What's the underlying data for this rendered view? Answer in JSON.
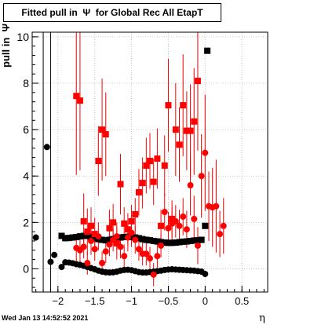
{
  "title": "Fitted pull in  Ψ  for Global Rec All EtapT",
  "ylabel": "pull in  Ψ",
  "xlabel": "η",
  "date_label": "Wed Jan 13 14:52:52 2021",
  "colors": {
    "black": "#000000",
    "red": "#ff0000",
    "frame": "#000000",
    "grid": "#bbbbbb"
  },
  "chart_data": {
    "type": "scatter",
    "xlim": [
      -2.35,
      0.85
    ],
    "ylim": [
      -1.0,
      10.2
    ],
    "grid": true,
    "xticks": [
      -2,
      -1.5,
      -1,
      -0.5,
      0,
      0.5
    ],
    "xtick_labels": [
      "−2",
      "−1.5",
      "−1",
      "−0.5",
      "0",
      "0.5"
    ],
    "yticks": [
      0,
      2,
      4,
      6,
      8,
      10
    ],
    "ytick_labels": [
      "0",
      "2",
      "4",
      "6",
      "8",
      "10"
    ],
    "series": [
      {
        "marker": "square",
        "color": "#000000",
        "points": [
          [
            -1.95,
            1.42
          ],
          [
            -1.9,
            1.32
          ],
          [
            -1.85,
            1.33
          ],
          [
            -1.8,
            1.35
          ],
          [
            -1.75,
            1.37
          ],
          [
            -1.7,
            1.4
          ],
          [
            -1.65,
            1.42
          ],
          [
            -1.6,
            1.42
          ],
          [
            -1.55,
            1.38
          ],
          [
            -1.5,
            1.33
          ],
          [
            -1.45,
            1.28
          ],
          [
            -1.4,
            1.25
          ],
          [
            -1.35,
            1.23
          ],
          [
            -1.3,
            1.25
          ],
          [
            -1.25,
            1.28
          ],
          [
            -1.2,
            1.32
          ],
          [
            -1.15,
            1.35
          ],
          [
            -1.1,
            1.37
          ],
          [
            -1.05,
            1.38
          ],
          [
            -1.0,
            1.37
          ],
          [
            -0.95,
            1.35
          ],
          [
            -0.9,
            1.32
          ],
          [
            -0.85,
            1.28
          ],
          [
            -0.8,
            1.25
          ],
          [
            -0.75,
            1.23
          ],
          [
            -0.7,
            1.2
          ],
          [
            -0.65,
            1.18
          ],
          [
            -0.6,
            1.15
          ],
          [
            -0.55,
            1.13
          ],
          [
            -0.5,
            1.12
          ],
          [
            -0.45,
            1.12
          ],
          [
            -0.4,
            1.13
          ],
          [
            -0.35,
            1.15
          ],
          [
            -0.3,
            1.17
          ],
          [
            -0.25,
            1.18
          ],
          [
            -0.2,
            1.2
          ],
          [
            -0.15,
            1.22
          ],
          [
            -0.1,
            1.23
          ],
          [
            -0.05,
            1.25
          ],
          [
            0.0,
            1.85
          ],
          [
            0.03,
            9.4
          ]
        ]
      },
      {
        "marker": "circle",
        "color": "#000000",
        "points": [
          [
            -2.3,
            1.35
          ],
          [
            -2.15,
            5.25
          ],
          [
            -2.1,
            0.3
          ],
          [
            -2.05,
            0.6
          ],
          [
            -1.95,
            0.08
          ],
          [
            -1.9,
            0.28
          ],
          [
            -1.85,
            0.27
          ],
          [
            -1.8,
            0.24
          ],
          [
            -1.75,
            0.2
          ],
          [
            -1.7,
            0.17
          ],
          [
            -1.65,
            0.13
          ],
          [
            -1.6,
            0.08
          ],
          [
            -1.55,
            0.03
          ],
          [
            -1.5,
            -0.02
          ],
          [
            -1.45,
            -0.08
          ],
          [
            -1.4,
            -0.12
          ],
          [
            -1.35,
            -0.15
          ],
          [
            -1.3,
            -0.16
          ],
          [
            -1.25,
            -0.15
          ],
          [
            -1.2,
            -0.12
          ],
          [
            -1.15,
            -0.08
          ],
          [
            -1.1,
            -0.05
          ],
          [
            -1.05,
            -0.04
          ],
          [
            -1.0,
            -0.06
          ],
          [
            -0.95,
            -0.1
          ],
          [
            -0.9,
            -0.14
          ],
          [
            -0.85,
            -0.16
          ],
          [
            -0.8,
            -0.16
          ],
          [
            -0.75,
            -0.14
          ],
          [
            -0.7,
            -0.12
          ],
          [
            -0.65,
            -0.1
          ],
          [
            -0.6,
            -0.08
          ],
          [
            -0.55,
            -0.05
          ],
          [
            -0.5,
            -0.03
          ],
          [
            -0.45,
            -0.02
          ],
          [
            -0.4,
            -0.03
          ],
          [
            -0.35,
            -0.04
          ],
          [
            -0.3,
            -0.05
          ],
          [
            -0.25,
            -0.06
          ],
          [
            -0.2,
            -0.07
          ],
          [
            -0.15,
            -0.08
          ],
          [
            -0.1,
            -0.1
          ],
          [
            -0.05,
            -0.12
          ],
          [
            0.0,
            -0.22
          ]
        ]
      },
      {
        "marker": "square",
        "color": "#ff0000",
        "points": [
          [
            -1.75,
            7.45,
            3.4
          ],
          [
            -1.7,
            7.25,
            3.0
          ],
          [
            -1.65,
            2.05,
            1.2
          ],
          [
            -1.6,
            1.6,
            1.0
          ],
          [
            -1.55,
            1.85,
            0.8
          ],
          [
            -1.5,
            1.5,
            0.7
          ],
          [
            -1.45,
            4.65,
            1.5
          ],
          [
            -1.4,
            6.0,
            2.2
          ],
          [
            -1.35,
            5.8,
            1.8
          ],
          [
            -1.3,
            1.75,
            0.8
          ],
          [
            -1.25,
            2.0,
            0.8
          ],
          [
            -1.2,
            1.1,
            0.7
          ],
          [
            -1.15,
            3.65,
            1.3
          ],
          [
            -1.1,
            1.95,
            0.7
          ],
          [
            -1.05,
            1.7,
            0.7
          ],
          [
            -1.0,
            2.05,
            0.7
          ],
          [
            -0.95,
            2.35,
            0.7
          ],
          [
            -0.9,
            3.3,
            1.0
          ],
          [
            -0.85,
            3.7,
            1.1
          ],
          [
            -0.8,
            4.45,
            1.2
          ],
          [
            -0.75,
            4.65,
            1.2
          ],
          [
            -0.7,
            3.75,
            1.0
          ],
          [
            -0.65,
            4.75,
            1.3
          ],
          [
            -0.6,
            1.85,
            0.7
          ],
          [
            -0.55,
            4.45,
            1.3
          ],
          [
            -0.5,
            7.05,
            2.0
          ],
          [
            -0.45,
            2.15,
            0.8
          ],
          [
            -0.4,
            6.0,
            2.0
          ],
          [
            -0.35,
            5.35,
            1.6
          ],
          [
            -0.3,
            7.05,
            2.2
          ],
          [
            -0.25,
            5.95,
            1.7
          ],
          [
            -0.2,
            5.95,
            2.0
          ],
          [
            -0.15,
            6.35,
            2.3
          ],
          [
            -0.1,
            8.1,
            3.0
          ]
        ]
      },
      {
        "marker": "circle",
        "color": "#ff0000",
        "points": [
          [
            -1.75,
            0.9,
            0.6
          ],
          [
            -1.7,
            0.8,
            0.5
          ],
          [
            -1.65,
            0.95,
            0.5
          ],
          [
            -1.6,
            0.25,
            0.5
          ],
          [
            -1.55,
            1.2,
            0.6
          ],
          [
            -1.5,
            0.85,
            0.5
          ],
          [
            -1.45,
            1.4,
            0.6
          ],
          [
            -1.4,
            0.25,
            0.5
          ],
          [
            -1.35,
            0.75,
            0.5
          ],
          [
            -1.3,
            1.05,
            0.5
          ],
          [
            -1.25,
            1.25,
            0.5
          ],
          [
            -1.2,
            1.4,
            0.6
          ],
          [
            -1.15,
            0.95,
            0.5
          ],
          [
            -1.1,
            0.55,
            0.5
          ],
          [
            -1.05,
            1.35,
            0.6
          ],
          [
            -1.0,
            1.55,
            0.6
          ],
          [
            -0.95,
            1.25,
            0.6
          ],
          [
            -0.9,
            0.85,
            0.5
          ],
          [
            -0.85,
            0.65,
            0.5
          ],
          [
            -0.8,
            0.65,
            0.5
          ],
          [
            -0.75,
            0.45,
            0.5
          ],
          [
            -0.7,
            -0.25,
            0.5
          ],
          [
            -0.65,
            0.55,
            0.5
          ],
          [
            -0.6,
            1.0,
            0.5
          ],
          [
            -0.55,
            2.45,
            0.8
          ],
          [
            -0.5,
            1.75,
            0.7
          ],
          [
            -0.45,
            1.95,
            0.7
          ],
          [
            -0.4,
            2.05,
            0.7
          ],
          [
            -0.35,
            1.85,
            0.7
          ],
          [
            -0.3,
            2.25,
            0.8
          ],
          [
            -0.25,
            1.7,
            0.8
          ],
          [
            -0.2,
            3.6,
            1.3
          ],
          [
            -0.15,
            2.15,
            1.0
          ],
          [
            -0.1,
            1.0,
            0.8
          ],
          [
            -0.05,
            4.0,
            1.8
          ],
          [
            0.0,
            5.0,
            2.5
          ],
          [
            0.05,
            2.7,
            1.5
          ],
          [
            0.1,
            2.65,
            1.7
          ],
          [
            0.15,
            2.7,
            2.0
          ],
          [
            0.2,
            1.5,
            1.0
          ],
          [
            0.25,
            1.85,
            1.2
          ]
        ]
      }
    ],
    "vlines": [
      -2.2,
      -2.1
    ]
  }
}
